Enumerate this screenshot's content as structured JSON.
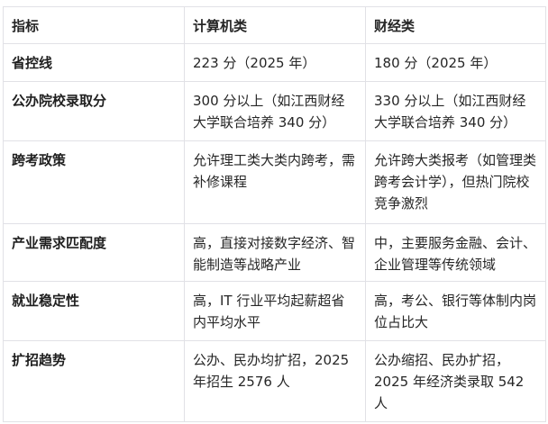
{
  "table": {
    "headers": [
      "指标",
      "计算机类",
      "财经类"
    ],
    "rows": [
      [
        "省控线",
        "223 分（2025 年）",
        "180 分（2025 年）"
      ],
      [
        "公办院校录取分",
        "300 分以上（如江西财经大学联合培养 340 分）",
        "330 分以上（如江西财经大学联合培养 340 分）"
      ],
      [
        "跨考政策",
        "允许理工类大类内跨考，需补修课程",
        "允许跨大类报考（如管理类跨考会计学），但热门院校竞争激烈"
      ],
      [
        "产业需求匹配度",
        "高，直接对接数字经济、智能制造等战略产业",
        "中，主要服务金融、会计、企业管理等传统领域"
      ],
      [
        "就业稳定性",
        "高，IT 行业平均起薪超省内平均水平",
        "高，考公、银行等体制内岗位占比大"
      ],
      [
        "扩招趋势",
        "公办、民办均扩招，2025 年招生 2576 人",
        "公办缩招、民办扩招，2025 年经济类录取 542 人"
      ]
    ]
  }
}
